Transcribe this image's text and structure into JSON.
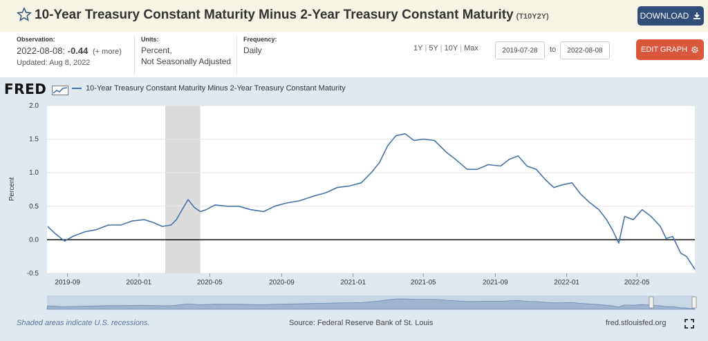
{
  "header": {
    "title": "10-Year Treasury Constant Maturity Minus 2-Year Treasury Constant Maturity",
    "series_id": "(T10Y2Y)",
    "download_label": "DOWNLOAD"
  },
  "meta": {
    "observation_label": "Observation:",
    "observation_date": "2022-08-08:",
    "observation_value": "-0.44",
    "observation_more": "(+ more)",
    "updated": "Updated: Aug 8, 2022",
    "units_label": "Units:",
    "units_line1": "Percent,",
    "units_line2": "Not Seasonally Adjusted",
    "frequency_label": "Frequency:",
    "frequency_value": "Daily"
  },
  "controls": {
    "ranges": [
      "1Y",
      "5Y",
      "10Y",
      "Max"
    ],
    "start_date": "2019-07-28",
    "to_label": "to",
    "end_date": "2022-08-08",
    "edit_label": "EDIT GRAPH"
  },
  "branding": {
    "logo": "FRED"
  },
  "footer": {
    "recession_note": "Shaded areas indicate U.S. recessions.",
    "source": "Source: Federal Reserve Bank of St. Louis",
    "url": "fred.stlouisfed.org"
  },
  "icons": [
    "star-icon",
    "download-icon",
    "gear-icon",
    "fullscreen-icon",
    "fred-logo-graph-icon"
  ],
  "colors": {
    "series": "#4572a7",
    "download_button": "#2f4e78",
    "edit_button": "#d9573c",
    "recession": "#dcdcdc",
    "header_bg": "#f6f4e4"
  },
  "chart_data": {
    "type": "line",
    "title": "",
    "legend": "10-Year Treasury Constant Maturity Minus 2-Year Treasury Constant Maturity",
    "ylabel": "Percent",
    "xlabel": "",
    "ylim": [
      -0.5,
      2.0
    ],
    "yticks": [
      -0.5,
      0.0,
      0.5,
      1.0,
      1.5,
      2.0
    ],
    "ytick_labels": [
      "-0.5",
      "0.0",
      "0.5",
      "1.0",
      "1.5",
      "2.0"
    ],
    "xlim": [
      "2019-07-28",
      "2022-08-08"
    ],
    "xticks": [
      "2019-09",
      "2020-01",
      "2020-05",
      "2020-09",
      "2021-01",
      "2021-05",
      "2021-09",
      "2022-01",
      "2022-05"
    ],
    "recession": {
      "start": "2020-02-15",
      "end": "2020-04-15"
    },
    "reference_line": 0.0,
    "grid": "horizontal",
    "series": [
      {
        "name": "10-Year Treasury Constant Maturity Minus 2-Year Treasury Constant Maturity",
        "x": [
          "2019-07-29",
          "2019-08-10",
          "2019-08-27",
          "2019-09-10",
          "2019-10-01",
          "2019-10-20",
          "2019-11-10",
          "2019-12-01",
          "2019-12-20",
          "2020-01-10",
          "2020-01-25",
          "2020-02-10",
          "2020-02-25",
          "2020-03-05",
          "2020-03-15",
          "2020-03-25",
          "2020-04-05",
          "2020-04-15",
          "2020-04-25",
          "2020-05-10",
          "2020-06-01",
          "2020-06-20",
          "2020-07-10",
          "2020-08-01",
          "2020-08-20",
          "2020-09-10",
          "2020-10-01",
          "2020-10-25",
          "2020-11-15",
          "2020-12-05",
          "2020-12-25",
          "2021-01-15",
          "2021-02-01",
          "2021-02-15",
          "2021-03-01",
          "2021-03-15",
          "2021-03-31",
          "2021-04-15",
          "2021-05-01",
          "2021-05-20",
          "2021-06-10",
          "2021-06-25",
          "2021-07-15",
          "2021-08-01",
          "2021-08-20",
          "2021-09-10",
          "2021-09-25",
          "2021-10-10",
          "2021-10-25",
          "2021-11-10",
          "2021-11-25",
          "2021-12-10",
          "2021-12-25",
          "2022-01-10",
          "2022-01-25",
          "2022-02-10",
          "2022-02-25",
          "2022-03-10",
          "2022-03-20",
          "2022-03-31",
          "2022-04-10",
          "2022-04-25",
          "2022-05-10",
          "2022-05-25",
          "2022-06-10",
          "2022-06-20",
          "2022-07-01",
          "2022-07-15",
          "2022-07-25",
          "2022-08-08"
        ],
        "values": [
          0.2,
          0.1,
          -0.02,
          0.05,
          0.12,
          0.15,
          0.22,
          0.22,
          0.28,
          0.3,
          0.26,
          0.2,
          0.22,
          0.3,
          0.45,
          0.6,
          0.48,
          0.42,
          0.45,
          0.52,
          0.5,
          0.5,
          0.45,
          0.42,
          0.5,
          0.55,
          0.58,
          0.65,
          0.7,
          0.78,
          0.8,
          0.85,
          1.0,
          1.15,
          1.4,
          1.55,
          1.58,
          1.48,
          1.5,
          1.48,
          1.3,
          1.2,
          1.05,
          1.05,
          1.12,
          1.1,
          1.2,
          1.25,
          1.1,
          1.05,
          0.9,
          0.78,
          0.82,
          0.85,
          0.68,
          0.55,
          0.45,
          0.3,
          0.15,
          -0.05,
          0.35,
          0.3,
          0.45,
          0.35,
          0.2,
          0.02,
          0.05,
          -0.2,
          -0.25,
          -0.44
        ]
      }
    ]
  }
}
